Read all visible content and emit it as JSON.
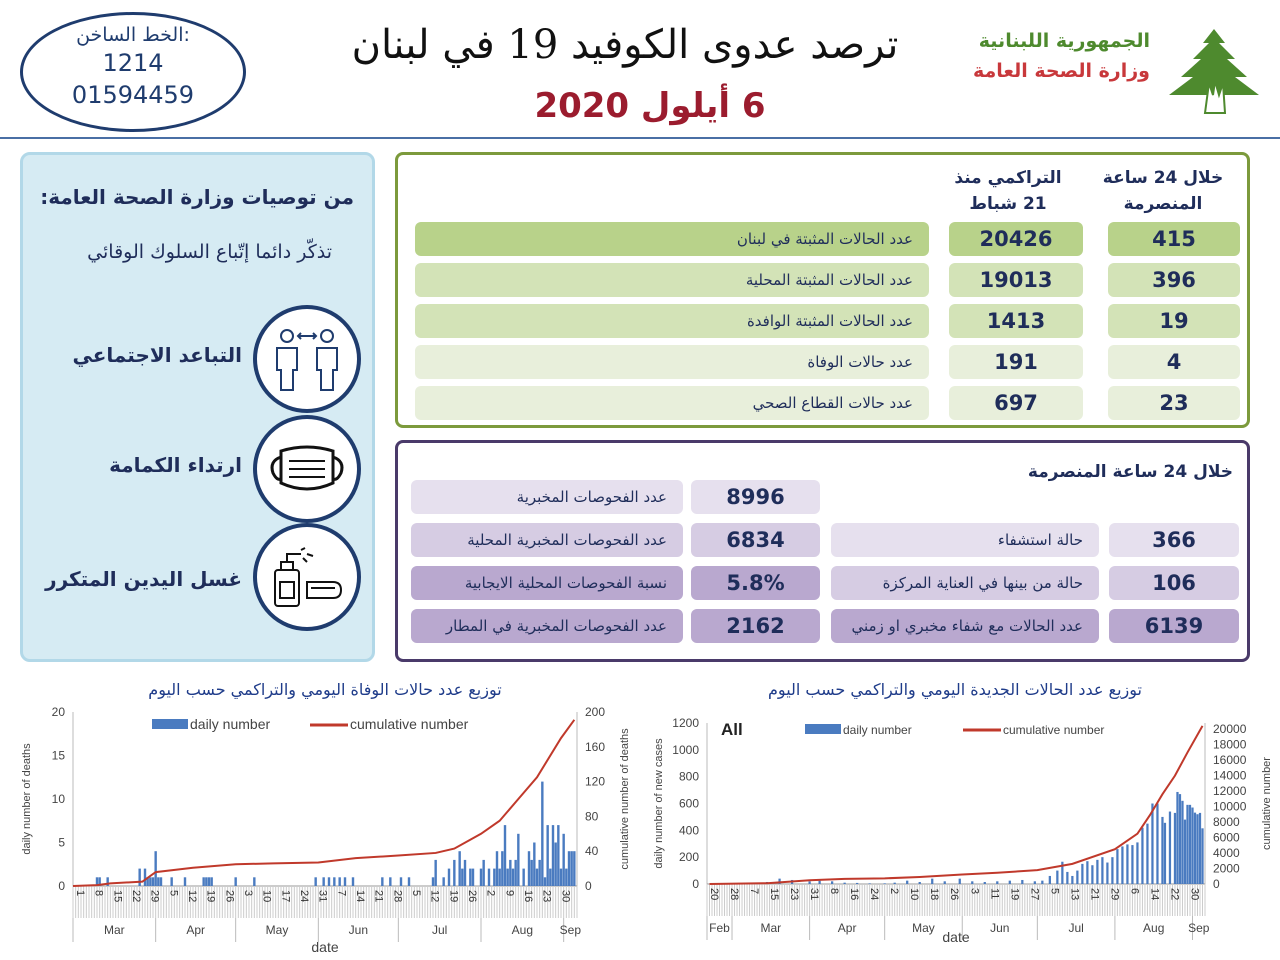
{
  "header": {
    "hotline_label": "الخط الساخن:",
    "hotline_short": "1214",
    "hotline_number": "01594459",
    "title": "ترصد عدوى الكوفيد 19 في لبنان",
    "date": "6 أيلول 2020",
    "republic": "الجمهورية اللبنانية",
    "ministry": "وزارة الصحة العامة",
    "logo_icon": "cedar-tree-icon",
    "colors": {
      "republic": "#4e8a2e",
      "ministry": "#c8383b",
      "date": "#9b1c2e"
    }
  },
  "recommendations": {
    "heading": "من توصيات وزارة الصحة العامة:",
    "subheading": "تذكّر دائما إتّباع السلوك الوقائي",
    "items": [
      {
        "label": "التباعد الاجتماعي",
        "icon": "social-distancing-icon"
      },
      {
        "label": "ارتداء الكمامة",
        "icon": "face-mask-icon"
      },
      {
        "label": "غسل اليدين المتكرر",
        "icon": "hand-sanitizer-icon"
      }
    ]
  },
  "cases_table": {
    "col_24h": "خلال 24 ساعة المنصرمة",
    "col_cumulative": "التراكمي منذ 21 شباط",
    "rows": [
      {
        "label": "عدد الحالات المثبتة في لبنان",
        "cumulative": "20426",
        "last24h": "415"
      },
      {
        "label": "عدد الحالات المثبتة المحلية",
        "cumulative": "19013",
        "last24h": "396"
      },
      {
        "label": "عدد الحالات المثبتة الوافدة",
        "cumulative": "1413",
        "last24h": "19"
      },
      {
        "label": "عدد حالات الوفاة",
        "cumulative": "191",
        "last24h": "4"
      },
      {
        "label": "عدد حالات القطاع الصحي",
        "cumulative": "697",
        "last24h": "23"
      }
    ]
  },
  "tests_table": {
    "heading": "خلال 24 ساعة المنصرمة",
    "tests": [
      {
        "label": "عدد الفحوصات المخبرية",
        "value": "8996"
      },
      {
        "label": "عدد الفحوصات المخبرية  المحلية",
        "value": "6834"
      },
      {
        "label": "نسبة الفحوصات المحلية الايجابية",
        "value": "5.8%"
      },
      {
        "label": "عدد الفحوصات المخبرية في المطار",
        "value": "2162"
      }
    ],
    "hospital": [
      {
        "label": "حالة استشفاء",
        "value": "366"
      },
      {
        "label": "حالة من بينها في العناية المركزة",
        "value": "106"
      },
      {
        "label": "عدد الحالات مع شفاء مخبري او زمني",
        "value": "6139"
      }
    ]
  },
  "chart_data": [
    {
      "type": "bar+line",
      "title": "توزيع عدد حالات  الوفاة اليومي والتراكمي حسب اليوم",
      "xlabel": "date",
      "ylabel": "daily number of deaths",
      "y2label": "cumulative number of deaths",
      "ylim": [
        0,
        20
      ],
      "y2lim": [
        0,
        200
      ],
      "yticks": [
        "0",
        "5",
        "10",
        "15",
        "20"
      ],
      "y2ticks": [
        "0",
        "40",
        "80",
        "120",
        "160",
        "200"
      ],
      "xrange": [
        "2020-03-01",
        "2020-09-06"
      ],
      "xtick_start": "2020-03-01",
      "xtick_step_days": 7,
      "xticks": [
        "1",
        "8",
        "15",
        "22",
        "29",
        "5",
        "12",
        "19",
        "26",
        "3",
        "10",
        "17",
        "24",
        "31",
        "7",
        "14",
        "21",
        "28",
        "5",
        "12",
        "19",
        "26",
        "2",
        "9",
        "16",
        "23",
        "30"
      ],
      "months": [
        "Mar",
        "Apr",
        "May",
        "Jun",
        "Jul",
        "Aug",
        "Sep"
      ],
      "legend": {
        "bar": "daily number",
        "line": "cumulative number",
        "placement": "top"
      },
      "colors": {
        "bar": "#4a7bc0",
        "line": "#c0392b"
      },
      "daily": [
        [
          "03-10",
          1
        ],
        [
          "03-11",
          1
        ],
        [
          "03-14",
          1
        ],
        [
          "03-26",
          2
        ],
        [
          "03-28",
          2
        ],
        [
          "03-29",
          1
        ],
        [
          "03-30",
          1
        ],
        [
          "03-31",
          1
        ],
        [
          "04-01",
          4
        ],
        [
          "04-02",
          1
        ],
        [
          "04-03",
          1
        ],
        [
          "04-07",
          1
        ],
        [
          "04-12",
          1
        ],
        [
          "04-19",
          1
        ],
        [
          "04-20",
          1
        ],
        [
          "04-21",
          1
        ],
        [
          "04-22",
          1
        ],
        [
          "05-01",
          1
        ],
        [
          "05-08",
          1
        ],
        [
          "05-31",
          1
        ],
        [
          "06-03",
          1
        ],
        [
          "06-05",
          1
        ],
        [
          "06-07",
          1
        ],
        [
          "06-09",
          1
        ],
        [
          "06-11",
          1
        ],
        [
          "06-14",
          1
        ],
        [
          "06-25",
          1
        ],
        [
          "06-28",
          1
        ],
        [
          "07-02",
          1
        ],
        [
          "07-05",
          1
        ],
        [
          "07-14",
          1
        ],
        [
          "07-15",
          3
        ],
        [
          "07-18",
          1
        ],
        [
          "07-20",
          2
        ],
        [
          "07-22",
          3
        ],
        [
          "07-24",
          4
        ],
        [
          "07-25",
          2
        ],
        [
          "07-26",
          3
        ],
        [
          "07-28",
          2
        ],
        [
          "07-29",
          2
        ],
        [
          "08-01",
          2
        ],
        [
          "08-02",
          3
        ],
        [
          "08-04",
          2
        ],
        [
          "08-06",
          2
        ],
        [
          "08-07",
          4
        ],
        [
          "08-08",
          2
        ],
        [
          "08-09",
          4
        ],
        [
          "08-10",
          7
        ],
        [
          "08-11",
          2
        ],
        [
          "08-12",
          3
        ],
        [
          "08-13",
          2
        ],
        [
          "08-14",
          3
        ],
        [
          "08-15",
          6
        ],
        [
          "08-17",
          2
        ],
        [
          "08-19",
          4
        ],
        [
          "08-20",
          3
        ],
        [
          "08-21",
          5
        ],
        [
          "08-22",
          2
        ],
        [
          "08-23",
          3
        ],
        [
          "08-24",
          12
        ],
        [
          "08-25",
          1
        ],
        [
          "08-26",
          7
        ],
        [
          "08-27",
          2
        ],
        [
          "08-28",
          7
        ],
        [
          "08-29",
          5
        ],
        [
          "08-30",
          7
        ],
        [
          "08-31",
          2
        ],
        [
          "09-01",
          6
        ],
        [
          "09-02",
          2
        ],
        [
          "09-03",
          4
        ],
        [
          "09-04",
          4
        ],
        [
          "09-05",
          4
        ]
      ],
      "cumulative": [
        [
          "03-01",
          0
        ],
        [
          "03-10",
          1
        ],
        [
          "03-15",
          3
        ],
        [
          "03-27",
          5
        ],
        [
          "04-01",
          16
        ],
        [
          "04-15",
          21
        ],
        [
          "05-01",
          25
        ],
        [
          "05-15",
          26
        ],
        [
          "06-01",
          27
        ],
        [
          "06-15",
          32
        ],
        [
          "07-01",
          35
        ],
        [
          "07-15",
          38
        ],
        [
          "07-22",
          43
        ],
        [
          "08-01",
          60
        ],
        [
          "08-08",
          75
        ],
        [
          "08-15",
          100
        ],
        [
          "08-22",
          125
        ],
        [
          "08-31",
          170
        ],
        [
          "09-05",
          191
        ]
      ]
    },
    {
      "type": "bar+line",
      "title": "توزيع عدد الحالات الجديدة اليومي والتراكمي حسب اليوم",
      "annotation": "All",
      "xlabel": "date",
      "ylabel": "daily number of new cases",
      "y2label": "cumulative number",
      "ylim": [
        0,
        1200
      ],
      "y2lim": [
        0,
        20800
      ],
      "yticks": [
        "0",
        "200",
        "400",
        "600",
        "800",
        "1000",
        "1200"
      ],
      "y2ticks": [
        "0",
        "2000",
        "4000",
        "6000",
        "8000",
        "10000",
        "12000",
        "14000",
        "16000",
        "18000",
        "20000"
      ],
      "xrange": [
        "2020-02-20",
        "2020-09-06"
      ],
      "xtick_start": "2020-02-20",
      "xtick_step_days": 8,
      "xticks": [
        "20",
        "28",
        "7",
        "15",
        "23",
        "31",
        "8",
        "16",
        "24",
        "2",
        "10",
        "18",
        "26",
        "3",
        "11",
        "19",
        "27",
        "5",
        "13",
        "21",
        "29",
        "6",
        "14",
        "22",
        "30"
      ],
      "months": [
        "Feb",
        "Mar",
        "Apr",
        "May",
        "Jun",
        "Jul",
        "Aug",
        "Sep"
      ],
      "legend": {
        "bar": "daily number",
        "line": "cumulative number",
        "placement": "top"
      },
      "colors": {
        "bar": "#4a7bc0",
        "line": "#c0392b"
      },
      "daily": [
        [
          "03-01",
          1
        ],
        [
          "03-10",
          10
        ],
        [
          "03-15",
          15
        ],
        [
          "03-20",
          40
        ],
        [
          "03-25",
          30
        ],
        [
          "04-01",
          20
        ],
        [
          "04-05",
          25
        ],
        [
          "04-10",
          20
        ],
        [
          "04-15",
          10
        ],
        [
          "04-20",
          8
        ],
        [
          "04-25",
          5
        ],
        [
          "05-01",
          5
        ],
        [
          "05-05",
          10
        ],
        [
          "05-10",
          25
        ],
        [
          "05-15",
          15
        ],
        [
          "05-20",
          40
        ],
        [
          "05-25",
          20
        ],
        [
          "05-31",
          40
        ],
        [
          "06-05",
          20
        ],
        [
          "06-10",
          15
        ],
        [
          "06-15",
          20
        ],
        [
          "06-20",
          25
        ],
        [
          "06-25",
          30
        ],
        [
          "06-30",
          20
        ],
        [
          "07-03",
          25
        ],
        [
          "07-06",
          60
        ],
        [
          "07-09",
          100
        ],
        [
          "07-11",
          166
        ],
        [
          "07-13",
          90
        ],
        [
          "07-15",
          60
        ],
        [
          "07-17",
          100
        ],
        [
          "07-19",
          150
        ],
        [
          "07-21",
          170
        ],
        [
          "07-23",
          140
        ],
        [
          "07-25",
          180
        ],
        [
          "07-27",
          200
        ],
        [
          "07-29",
          160
        ],
        [
          "07-31",
          200
        ],
        [
          "08-02",
          260
        ],
        [
          "08-04",
          280
        ],
        [
          "08-06",
          295
        ],
        [
          "08-08",
          290
        ],
        [
          "08-10",
          310
        ],
        [
          "08-12",
          420
        ],
        [
          "08-14",
          450
        ],
        [
          "08-16",
          600
        ],
        [
          "08-18",
          600
        ],
        [
          "08-20",
          500
        ],
        [
          "08-21",
          456
        ],
        [
          "08-23",
          540
        ],
        [
          "08-25",
          530
        ],
        [
          "08-26",
          686
        ],
        [
          "08-27",
          670
        ],
        [
          "08-28",
          620
        ],
        [
          "08-29",
          480
        ],
        [
          "08-30",
          590
        ],
        [
          "08-31",
          590
        ],
        [
          "09-01",
          570
        ],
        [
          "09-02",
          532
        ],
        [
          "09-03",
          520
        ],
        [
          "09-04",
          530
        ],
        [
          "09-05",
          415
        ]
      ],
      "cumulative": [
        [
          "02-21",
          1
        ],
        [
          "03-15",
          100
        ],
        [
          "04-01",
          480
        ],
        [
          "04-15",
          660
        ],
        [
          "05-01",
          730
        ],
        [
          "05-15",
          900
        ],
        [
          "06-01",
          1220
        ],
        [
          "06-15",
          1450
        ],
        [
          "07-01",
          1790
        ],
        [
          "07-15",
          2600
        ],
        [
          "08-01",
          4500
        ],
        [
          "08-10",
          6500
        ],
        [
          "08-15",
          8900
        ],
        [
          "08-20",
          11600
        ],
        [
          "08-25",
          14000
        ],
        [
          "08-30",
          17000
        ],
        [
          "09-05",
          20426
        ]
      ]
    }
  ]
}
